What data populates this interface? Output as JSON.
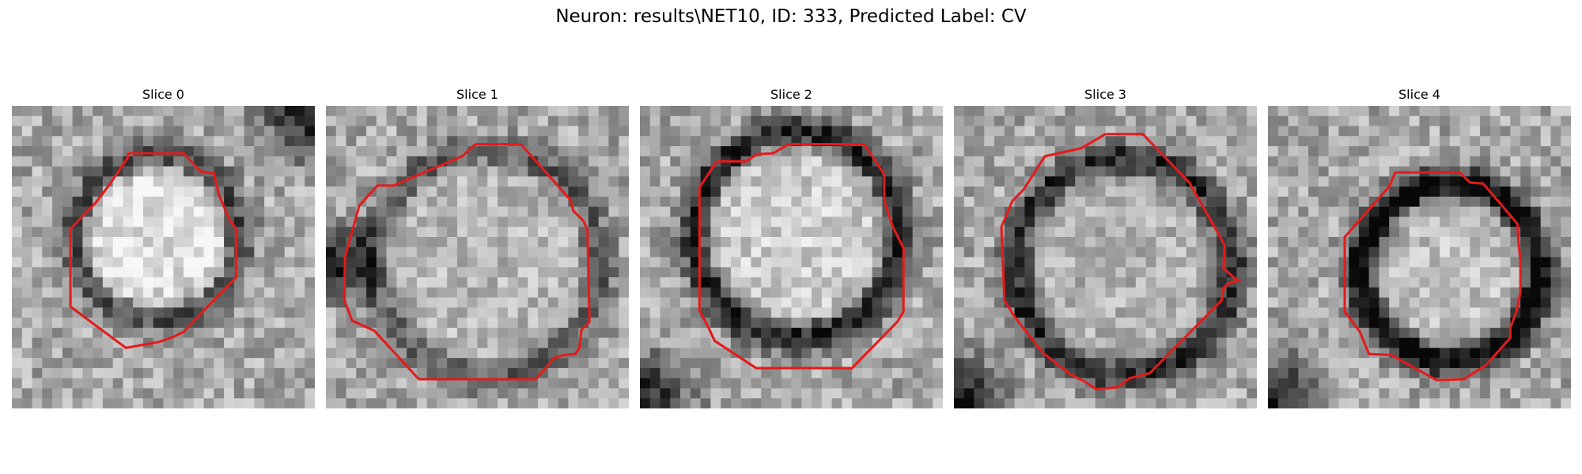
{
  "figure": {
    "title": "Neuron: results\\NET10, ID: 333, Predicted Label: CV"
  },
  "contour_color": "#e31b1b",
  "slices": [
    {
      "title": "Slice 0",
      "seed": 11,
      "ring_strength": 0.35,
      "bright_center": 0.88,
      "dark_corner": "top-right"
    },
    {
      "title": "Slice 1",
      "seed": 23,
      "ring_strength": 0.3,
      "bright_center": 0.72,
      "dark_corner": "left"
    },
    {
      "title": "Slice 2",
      "seed": 37,
      "ring_strength": 0.55,
      "bright_center": 0.8,
      "dark_corner": "bottom-left"
    },
    {
      "title": "Slice 3",
      "seed": 53,
      "ring_strength": 0.5,
      "bright_center": 0.7,
      "dark_corner": "bottom-left"
    },
    {
      "title": "Slice 4",
      "seed": 71,
      "ring_strength": 0.7,
      "bright_center": 0.75,
      "dark_corner": "bottom-left"
    }
  ]
}
